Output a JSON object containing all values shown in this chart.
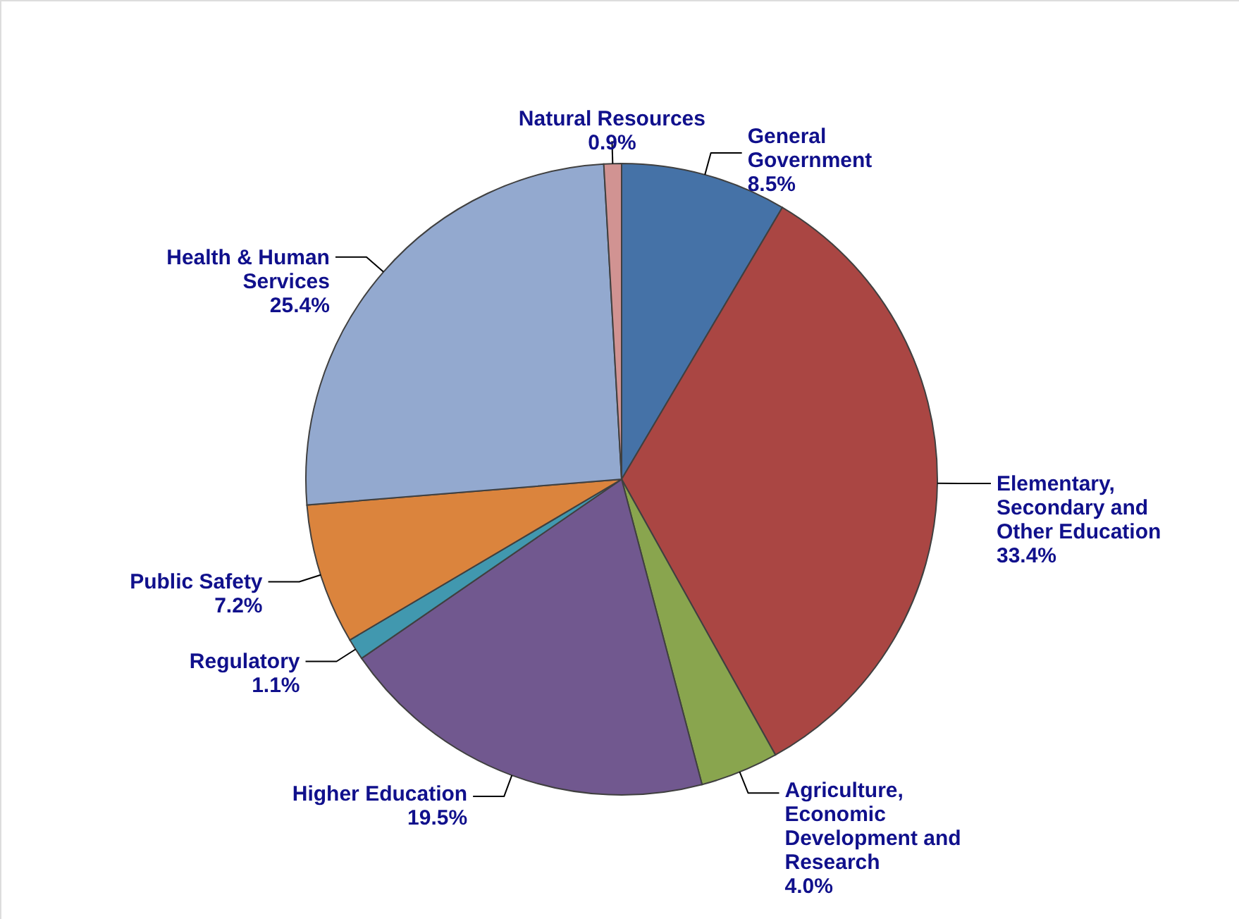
{
  "chart_data": {
    "type": "pie",
    "categories": [
      "General Government",
      "Elementary, Secondary and Other Education",
      "Agriculture, Economic Development and Research",
      "Higher Education",
      "Regulatory",
      "Public Safety",
      "Health & Human Services",
      "Natural Resources"
    ],
    "values": [
      8.5,
      33.4,
      4.0,
      19.5,
      1.1,
      7.2,
      25.4,
      0.9
    ],
    "colors": [
      "#4572a7",
      "#aa4643",
      "#89a54e",
      "#71588f",
      "#4198af",
      "#db843d",
      "#93a9cf",
      "#d19392"
    ],
    "value_labels": [
      "8.5%",
      "33.4%",
      "4.0%",
      "19.5%",
      "1.1%",
      "7.2%",
      "25.4%",
      "0.9%"
    ]
  }
}
